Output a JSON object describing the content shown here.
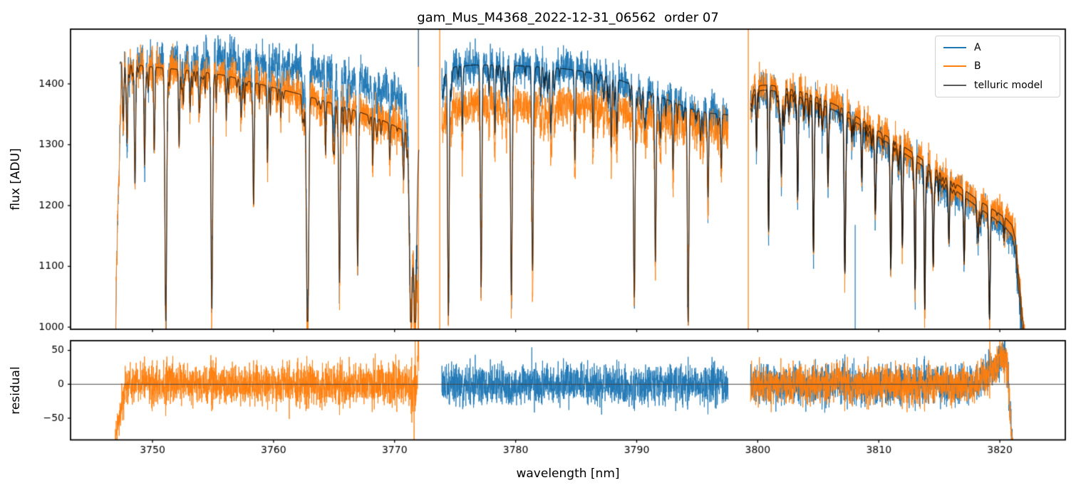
{
  "figure": {
    "background": "#ffffff"
  },
  "chart_data": {
    "type": "line",
    "title": "gam_Mus_M4368_2022-12-31_06562  order 07",
    "xlabel": "wavelength [nm]",
    "x_axis": {
      "lim": [
        3743.23,
        3825.41
      ],
      "ticks": [
        3750,
        3760,
        3770,
        3780,
        3790,
        3800,
        3810,
        3820
      ]
    },
    "panels": [
      {
        "id": "flux",
        "ylabel": "flux [ADU]",
        "ylim": [
          996.5,
          1490
        ],
        "yticks": [
          1000,
          1100,
          1200,
          1300,
          1400
        ]
      },
      {
        "id": "residual",
        "ylabel": "residual",
        "ylim": [
          -82,
          64.3
        ],
        "yticks": [
          -50,
          0,
          50
        ],
        "zero_line": true
      }
    ],
    "legend": [
      {
        "label": "A",
        "color": "#1f77b4"
      },
      {
        "label": "B",
        "color": "#ff7f0e"
      },
      {
        "label": "telluric model",
        "color": "#5a5a5a"
      }
    ],
    "colors": {
      "A": "#1f77b4",
      "B": "#ff7f0e",
      "model": "#5a5a5a"
    },
    "flux_floor": 1002,
    "mismatch_adu": 25,
    "micro_lines": {
      "per_nm": 2.8,
      "depth_range": [
        0.02,
        0.12
      ],
      "width_range": [
        0.025,
        0.06
      ]
    },
    "segments": [
      {
        "seed": 11,
        "x_range": [
          3746.85,
          3772.0
        ],
        "continuum": [
          [
            3747.3,
            1437
          ],
          [
            3748,
            1433
          ],
          [
            3750,
            1428
          ],
          [
            3752,
            1424
          ],
          [
            3754,
            1420
          ],
          [
            3756,
            1414
          ],
          [
            3758,
            1404
          ],
          [
            3760,
            1394
          ],
          [
            3762,
            1384
          ],
          [
            3764,
            1373
          ],
          [
            3766,
            1361
          ],
          [
            3767.5,
            1351
          ],
          [
            3769,
            1340
          ],
          [
            3770,
            1331
          ],
          [
            3771,
            1320
          ],
          [
            3771.9,
            1305
          ]
        ],
        "offsets": {
          "A": [
            [
              3746.9,
              0
            ],
            [
              3749,
              5
            ],
            [
              3751,
              12
            ],
            [
              3753,
              20
            ],
            [
              3755,
              28
            ],
            [
              3757,
              34
            ],
            [
              3759,
              38
            ],
            [
              3761,
              42
            ],
            [
              3763,
              46
            ],
            [
              3765,
              50
            ],
            [
              3767,
              52
            ],
            [
              3769,
              54
            ],
            [
              3770.5,
              55
            ],
            [
              3771.6,
              46
            ],
            [
              3772,
              38
            ]
          ],
          "B": [
            [
              3746.9,
              0
            ],
            [
              3772,
              0
            ]
          ]
        },
        "telluric_lines": [
          [
            3747.9,
            0.3,
            0.045
          ],
          [
            3748.55,
            0.42,
            0.05
          ],
          [
            3749.35,
            0.38,
            0.05
          ],
          [
            3750.15,
            0.32,
            0.05
          ],
          [
            3751.1,
            0.985,
            0.075
          ],
          [
            3752.2,
            0.3,
            0.05
          ],
          [
            3753.1,
            0.15,
            0.04
          ],
          [
            3754.9,
            0.93,
            0.07
          ],
          [
            3756.1,
            0.18,
            0.04
          ],
          [
            3757.3,
            0.12,
            0.04
          ],
          [
            3758.35,
            0.5,
            0.055
          ],
          [
            3759.5,
            0.22,
            0.045
          ],
          [
            3760.6,
            0.12,
            0.04
          ],
          [
            3762.8,
            0.99,
            0.085
          ],
          [
            3764.3,
            0.18,
            0.045
          ],
          [
            3765.45,
            0.8,
            0.06
          ],
          [
            3766.95,
            0.72,
            0.06
          ],
          [
            3768.2,
            0.18,
            0.045
          ],
          [
            3769.6,
            0.12,
            0.04
          ],
          [
            3770.75,
            0.25,
            0.045
          ],
          [
            3771.35,
            1.0,
            0.12
          ],
          [
            3771.7,
            1.0,
            0.12
          ]
        ],
        "noise_adu": {
          "A": 15,
          "B": 15.5
        },
        "model_fibers": [
          "B"
        ],
        "residual_fibers": [
          "B"
        ],
        "start_ramp": {
          "x0": 3746.85,
          "span": 0.65,
          "drop": 520
        },
        "end_drop": {
          "x1": 3772.0,
          "span": 0.22,
          "drop": 430
        },
        "residual_add": [
          [
            3746.85,
            -95
          ],
          [
            3747.05,
            -75
          ],
          [
            3747.3,
            -40
          ],
          [
            3747.6,
            -12
          ],
          [
            3747.9,
            0
          ],
          [
            3771.2,
            0
          ],
          [
            3771.5,
            -28
          ],
          [
            3771.75,
            -8
          ],
          [
            3771.9,
            25
          ],
          [
            3771.97,
            55
          ],
          [
            3772.0,
            30
          ]
        ]
      },
      {
        "seed": 22,
        "x_range": [
          3773.9,
          3797.55
        ],
        "continuum": [
          [
            3773.95,
            1402
          ],
          [
            3774.3,
            1420
          ],
          [
            3775,
            1428
          ],
          [
            3776.5,
            1431
          ],
          [
            3778,
            1431
          ],
          [
            3780,
            1430
          ],
          [
            3782,
            1428
          ],
          [
            3784,
            1425
          ],
          [
            3785.5,
            1421
          ],
          [
            3787,
            1415
          ],
          [
            3788.5,
            1407
          ],
          [
            3790,
            1396
          ],
          [
            3791.5,
            1383
          ],
          [
            3793,
            1370
          ],
          [
            3794.5,
            1359
          ],
          [
            3796,
            1352
          ],
          [
            3797.55,
            1349
          ]
        ],
        "offsets": {
          "A": [
            [
              3773.9,
              0
            ],
            [
              3797.55,
              0
            ]
          ],
          "B": [
            [
              3774,
              -58
            ],
            [
              3776,
              -64
            ],
            [
              3779,
              -64
            ],
            [
              3782,
              -62
            ],
            [
              3785,
              -58
            ],
            [
              3787,
              -52
            ],
            [
              3789,
              -46
            ],
            [
              3791,
              -38
            ],
            [
              3793,
              -30
            ],
            [
              3795,
              -24
            ],
            [
              3797.5,
              -20
            ]
          ]
        },
        "telluric_lines": [
          [
            3774.45,
            0.88,
            0.06
          ],
          [
            3775.6,
            0.25,
            0.045
          ],
          [
            3777.15,
            0.85,
            0.06
          ],
          [
            3778.3,
            0.2,
            0.04
          ],
          [
            3779.65,
            0.88,
            0.065
          ],
          [
            3781.4,
            0.78,
            0.06
          ],
          [
            3782.9,
            0.25,
            0.045
          ],
          [
            3784.9,
            0.35,
            0.05
          ],
          [
            3786.4,
            0.2,
            0.045
          ],
          [
            3787.9,
            0.28,
            0.045
          ],
          [
            3789.8,
            0.88,
            0.065
          ],
          [
            3791.55,
            0.72,
            0.055
          ],
          [
            3793.0,
            0.3,
            0.045
          ],
          [
            3794.25,
            0.985,
            0.06
          ],
          [
            3795.9,
            0.33,
            0.045
          ],
          [
            3797.0,
            0.2,
            0.04
          ]
        ],
        "noise_adu": {
          "A": 14,
          "B": 15.5
        },
        "model_fibers": [
          "A"
        ],
        "residual_fibers": [
          "A"
        ],
        "start_ramp": null,
        "end_drop": null,
        "residual_add": []
      },
      {
        "seed": 33,
        "x_range": [
          3799.4,
          3822.2
        ],
        "continuum": [
          [
            3799.4,
            1360
          ],
          [
            3799.7,
            1382
          ],
          [
            3800.2,
            1389
          ],
          [
            3800.8,
            1390
          ],
          [
            3801.8,
            1387
          ],
          [
            3803,
            1381
          ],
          [
            3804.2,
            1374
          ],
          [
            3805.5,
            1364
          ],
          [
            3806.8,
            1352
          ],
          [
            3808,
            1338
          ],
          [
            3809.2,
            1323
          ],
          [
            3810.5,
            1306
          ],
          [
            3811.8,
            1290
          ],
          [
            3813,
            1274
          ],
          [
            3814.2,
            1256
          ],
          [
            3815.5,
            1237
          ],
          [
            3816.8,
            1218
          ],
          [
            3818,
            1200
          ],
          [
            3819,
            1186
          ],
          [
            3819.8,
            1175
          ],
          [
            3820.5,
            1163
          ],
          [
            3821,
            1150
          ],
          [
            3821.3,
            1122
          ],
          [
            3821.6,
            1052
          ],
          [
            3821.9,
            982
          ],
          [
            3822.2,
            912
          ]
        ],
        "offsets": {
          "A": [
            [
              3799.4,
              0
            ],
            [
              3822.2,
              0
            ]
          ],
          "B": [
            [
              3799.4,
              8
            ],
            [
              3803,
              9
            ],
            [
              3807,
              10
            ],
            [
              3811,
              10
            ],
            [
              3815,
              11
            ],
            [
              3818,
              12
            ],
            [
              3820,
              14
            ],
            [
              3821,
              18
            ],
            [
              3821.6,
              24
            ],
            [
              3822.2,
              30
            ]
          ]
        },
        "telluric_lines": [
          [
            3799.9,
            0.25,
            0.04
          ],
          [
            3800.9,
            0.6,
            0.05
          ],
          [
            3801.95,
            0.35,
            0.045
          ],
          [
            3803.3,
            0.45,
            0.05
          ],
          [
            3804.6,
            0.65,
            0.055
          ],
          [
            3805.8,
            0.35,
            0.045
          ],
          [
            3807.2,
            0.75,
            0.06
          ],
          [
            3808.6,
            0.28,
            0.045
          ],
          [
            3809.7,
            0.35,
            0.045
          ],
          [
            3811.0,
            0.65,
            0.055
          ],
          [
            3811.95,
            0.55,
            0.05
          ],
          [
            3813.0,
            0.78,
            0.05
          ],
          [
            3813.8,
            0.82,
            0.05
          ],
          [
            3814.5,
            0.6,
            0.05
          ],
          [
            3815.8,
            0.38,
            0.045
          ],
          [
            3817.05,
            0.45,
            0.05
          ],
          [
            3818.2,
            0.3,
            0.045
          ],
          [
            3819.15,
            0.93,
            0.055
          ],
          [
            3820.35,
            0.15,
            0.04
          ]
        ],
        "noise_adu": {
          "A": 14,
          "B": 14
        },
        "model_fibers": [
          "A",
          "B"
        ],
        "residual_fibers": [
          "A",
          "B"
        ],
        "start_ramp": null,
        "end_drop": null,
        "residual_add": [
          [
            3799.4,
            0
          ],
          [
            3817.8,
            0
          ],
          [
            3818.4,
            8
          ],
          [
            3819.2,
            18
          ],
          [
            3819.8,
            28
          ],
          [
            3820.2,
            40
          ],
          [
            3820.5,
            38
          ],
          [
            3820.7,
            10
          ],
          [
            3820.85,
            -40
          ],
          [
            3821.0,
            -90
          ],
          [
            3821.2,
            -130
          ],
          [
            3822.2,
            -200
          ]
        ]
      }
    ],
    "vlines": [
      {
        "fiber": "B",
        "x": 3771.97,
        "y_top": null,
        "y_bot": null
      },
      {
        "fiber": "A",
        "x": 3771.97,
        "y_top": null,
        "y_bot": 1428
      },
      {
        "fiber": "B",
        "x": 3773.73,
        "y_top": null,
        "y_bot": null
      },
      {
        "fiber": "B",
        "x": 3799.22,
        "y_top": null,
        "y_bot": null
      },
      {
        "fiber": "A",
        "x": 3808.05,
        "y_top": 1168,
        "y_bot": null
      }
    ]
  }
}
